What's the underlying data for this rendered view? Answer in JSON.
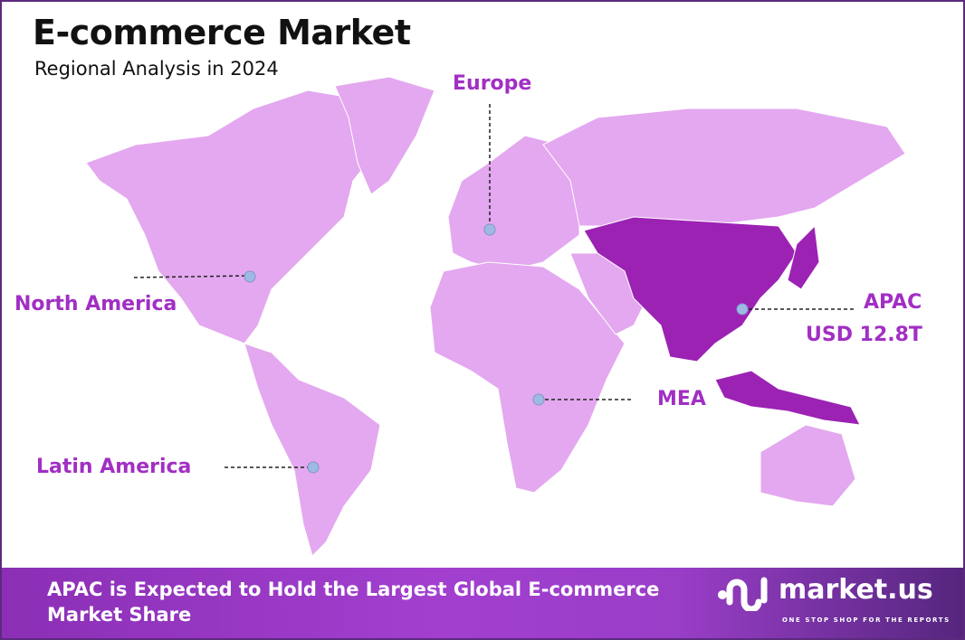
{
  "header": {
    "title": "E-commerce Market",
    "subtitle": "Regional Analysis in 2024"
  },
  "colors": {
    "map_base": "#e3a8ef",
    "highlight": "#9c22b4",
    "label": "#a12fc4",
    "marker": "#9fb9e6"
  },
  "regions": [
    {
      "name": "North America",
      "highlighted": false
    },
    {
      "name": "Europe",
      "highlighted": false
    },
    {
      "name": "APAC",
      "value": "USD 12.8T",
      "highlighted": true
    },
    {
      "name": "MEA",
      "highlighted": false
    },
    {
      "name": "Latin America",
      "highlighted": false
    }
  ],
  "footer": {
    "headline": "APAC is Expected to Hold the Largest Global E-commerce Market Share"
  },
  "logo": {
    "name": "market.us",
    "tagline": "ONE STOP SHOP FOR THE REPORTS"
  }
}
